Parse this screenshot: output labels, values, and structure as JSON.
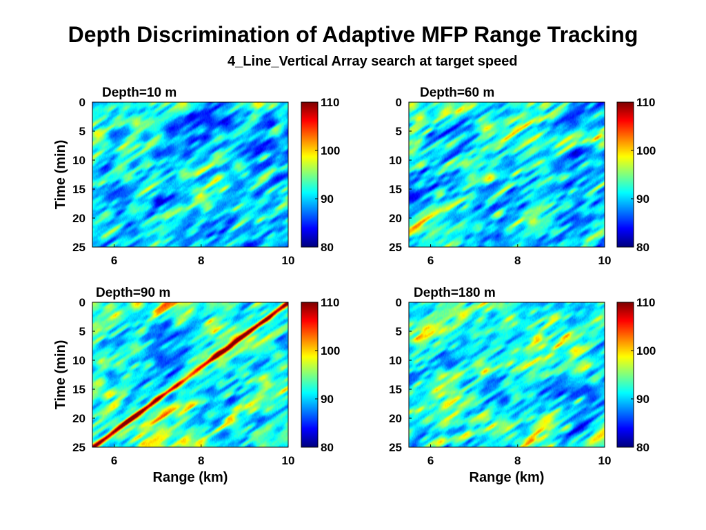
{
  "title": "Depth Discrimination of Adaptive MFP Range Tracking",
  "subtitle": "4_Line_Vertical Array search at target speed",
  "colormap": "jet",
  "chart_data": [
    {
      "type": "heatmap",
      "title": "Depth=10 m",
      "xlabel": "",
      "ylabel": "Time (min)",
      "xlim": [
        5.5,
        10
      ],
      "ylim": [
        0,
        25
      ],
      "y_reversed": true,
      "xticks": [
        "6",
        "8",
        "10"
      ],
      "yticks": [
        "0",
        "5",
        "10",
        "15",
        "20",
        "25"
      ],
      "colorbar": {
        "range": [
          80,
          110
        ],
        "ticks": [
          "80",
          "90",
          "100",
          "110"
        ]
      },
      "track_strength": 0.0,
      "background_level": 0.32
    },
    {
      "type": "heatmap",
      "title": "Depth=60 m",
      "xlabel": "",
      "ylabel": "",
      "xlim": [
        5.5,
        10
      ],
      "ylim": [
        0,
        25
      ],
      "y_reversed": true,
      "xticks": [
        "6",
        "8",
        "10"
      ],
      "yticks": [
        "0",
        "5",
        "10",
        "15",
        "20",
        "25"
      ],
      "colorbar": {
        "range": [
          80,
          110
        ],
        "ticks": [
          "80",
          "90",
          "100",
          "110"
        ]
      },
      "track_strength": 0.0,
      "background_level": 0.34
    },
    {
      "type": "heatmap",
      "title": "Depth=90 m",
      "xlabel": "Range (km)",
      "ylabel": "Time (min)",
      "xlim": [
        5.5,
        10
      ],
      "ylim": [
        0,
        25
      ],
      "y_reversed": true,
      "xticks": [
        "6",
        "8",
        "10"
      ],
      "yticks": [
        "0",
        "5",
        "10",
        "15",
        "20",
        "25"
      ],
      "colorbar": {
        "range": [
          80,
          110
        ],
        "ticks": [
          "80",
          "90",
          "100",
          "110"
        ]
      },
      "track": {
        "start": {
          "range_km": 5.5,
          "time_min": 25
        },
        "end": {
          "range_km": 10,
          "time_min": 0
        }
      },
      "track_strength": 1.0,
      "background_level": 0.4
    },
    {
      "type": "heatmap",
      "title": "Depth=180 m",
      "xlabel": "Range (km)",
      "ylabel": "",
      "xlim": [
        5.5,
        10
      ],
      "ylim": [
        0,
        25
      ],
      "y_reversed": true,
      "xticks": [
        "6",
        "8",
        "10"
      ],
      "yticks": [
        "0",
        "5",
        "10",
        "15",
        "20",
        "25"
      ],
      "colorbar": {
        "range": [
          80,
          110
        ],
        "ticks": [
          "80",
          "90",
          "100",
          "110"
        ]
      },
      "track_strength": 0.0,
      "background_level": 0.38
    }
  ]
}
